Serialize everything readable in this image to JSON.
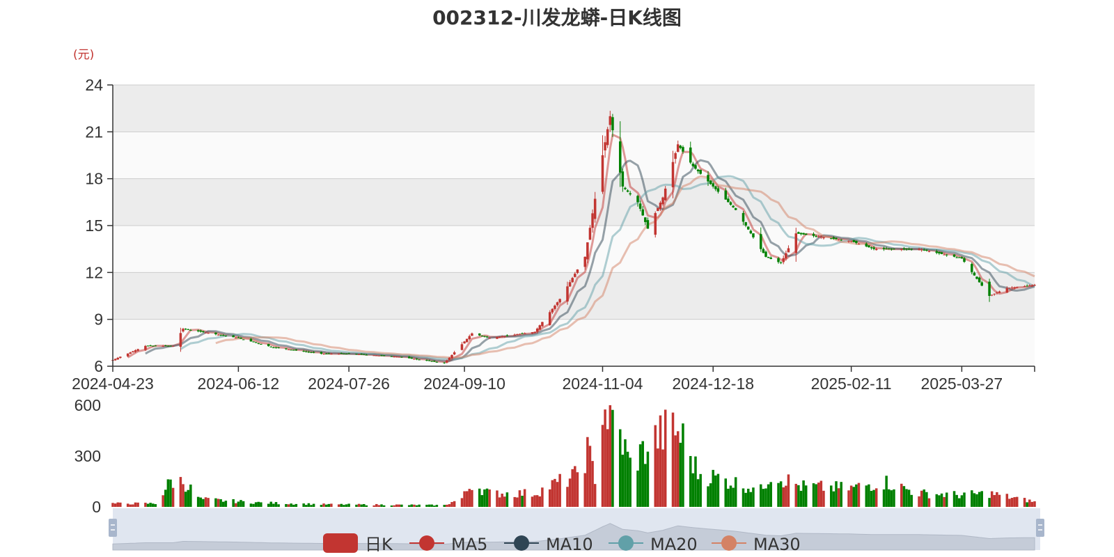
{
  "title": "002312-川发龙蟒-日K线图",
  "colors": {
    "up": "#c23531",
    "down": "#008000",
    "ma5": "#c23531",
    "ma10": "#2f4554",
    "ma20": "#61a0a8",
    "ma30": "#d48265",
    "grid_band": "#ececec",
    "grid_line": "#cccccc",
    "unit": "#c23531",
    "slider_bg": "#dde3ee",
    "slider_handle": "#a8b6cc"
  },
  "icons": {
    "slider_left": "slider-handle-icon",
    "slider_right": "slider-handle-icon"
  },
  "chart_data": [
    {
      "type": "candlestick",
      "title": "002312-川发龙蟒-日K线图",
      "ylabel": "(元)",
      "ylim": [
        6,
        24
      ],
      "yticks": [
        "6",
        "9",
        "12",
        "15",
        "18",
        "21",
        "24"
      ],
      "xticks": [
        "2024-04-23",
        "2024-06-12",
        "2024-07-26",
        "2024-09-10",
        "2024-11-04",
        "2024-12-18",
        "2025-02-11",
        "2025-03-27"
      ],
      "x_range": [
        "2024-04-23",
        "2025-04-25"
      ],
      "grid": true,
      "legend_position": "bottom",
      "legend": [
        "日K",
        "MA5",
        "MA10",
        "MA20",
        "MA30"
      ],
      "price_anchors": [
        [
          "2024-04-23",
          6.4
        ],
        [
          "2024-05-06",
          7.3
        ],
        [
          "2024-05-17",
          7.3
        ],
        [
          "2024-05-21",
          8.4
        ],
        [
          "2024-06-12",
          7.8
        ],
        [
          "2024-06-26",
          7.2
        ],
        [
          "2024-07-15",
          6.8
        ],
        [
          "2024-07-26",
          6.8
        ],
        [
          "2024-08-15",
          6.6
        ],
        [
          "2024-09-02",
          6.2
        ],
        [
          "2024-09-13",
          8.1
        ],
        [
          "2024-09-20",
          7.8
        ],
        [
          "2024-10-08",
          8.2
        ],
        [
          "2024-10-18",
          10.3
        ],
        [
          "2024-10-28",
          13.0
        ],
        [
          "2024-11-04",
          19.5
        ],
        [
          "2024-11-07",
          22.0
        ],
        [
          "2024-11-12",
          17.5
        ],
        [
          "2024-11-18",
          16.5
        ],
        [
          "2024-11-22",
          14.8
        ],
        [
          "2024-11-28",
          16.8
        ],
        [
          "2024-12-04",
          20.2
        ],
        [
          "2024-12-10",
          18.8
        ],
        [
          "2024-12-18",
          17.5
        ],
        [
          "2024-12-27",
          16.0
        ],
        [
          "2025-01-08",
          13.0
        ],
        [
          "2025-01-14",
          12.6
        ],
        [
          "2025-01-20",
          14.5
        ],
        [
          "2025-02-11",
          14.0
        ],
        [
          "2025-02-20",
          13.5
        ],
        [
          "2025-03-10",
          13.5
        ],
        [
          "2025-03-27",
          12.9
        ],
        [
          "2025-04-07",
          10.5
        ],
        [
          "2025-04-14",
          11.0
        ],
        [
          "2025-04-25",
          11.2
        ]
      ],
      "volume_ylim": [
        0,
        600
      ],
      "volume_yticks": [
        "0",
        "300",
        "600"
      ],
      "volume_anchors": [
        [
          "2024-04-23",
          20
        ],
        [
          "2024-05-10",
          20
        ],
        [
          "2024-05-16",
          150
        ],
        [
          "2024-05-21",
          150
        ],
        [
          "2024-05-28",
          45
        ],
        [
          "2024-06-20",
          25
        ],
        [
          "2024-07-15",
          15
        ],
        [
          "2024-09-02",
          10
        ],
        [
          "2024-09-09",
          50
        ],
        [
          "2024-09-13",
          140
        ],
        [
          "2024-09-20",
          80
        ],
        [
          "2024-10-08",
          80
        ],
        [
          "2024-10-15",
          130
        ],
        [
          "2024-10-24",
          180
        ],
        [
          "2024-10-29",
          330
        ],
        [
          "2024-11-01",
          180
        ],
        [
          "2024-11-04",
          590
        ],
        [
          "2024-11-06",
          550
        ],
        [
          "2024-11-11",
          420
        ],
        [
          "2024-11-15",
          250
        ],
        [
          "2024-11-25",
          400
        ],
        [
          "2024-12-02",
          470
        ],
        [
          "2024-12-06",
          400
        ],
        [
          "2024-12-12",
          200
        ],
        [
          "2024-12-20",
          170
        ],
        [
          "2025-01-06",
          100
        ],
        [
          "2025-01-10",
          200
        ],
        [
          "2025-01-22",
          120
        ],
        [
          "2025-02-11",
          110
        ],
        [
          "2025-02-24",
          150
        ],
        [
          "2025-03-10",
          80
        ],
        [
          "2025-03-27",
          70
        ],
        [
          "2025-04-07",
          80
        ],
        [
          "2025-04-25",
          30
        ]
      ]
    }
  ]
}
